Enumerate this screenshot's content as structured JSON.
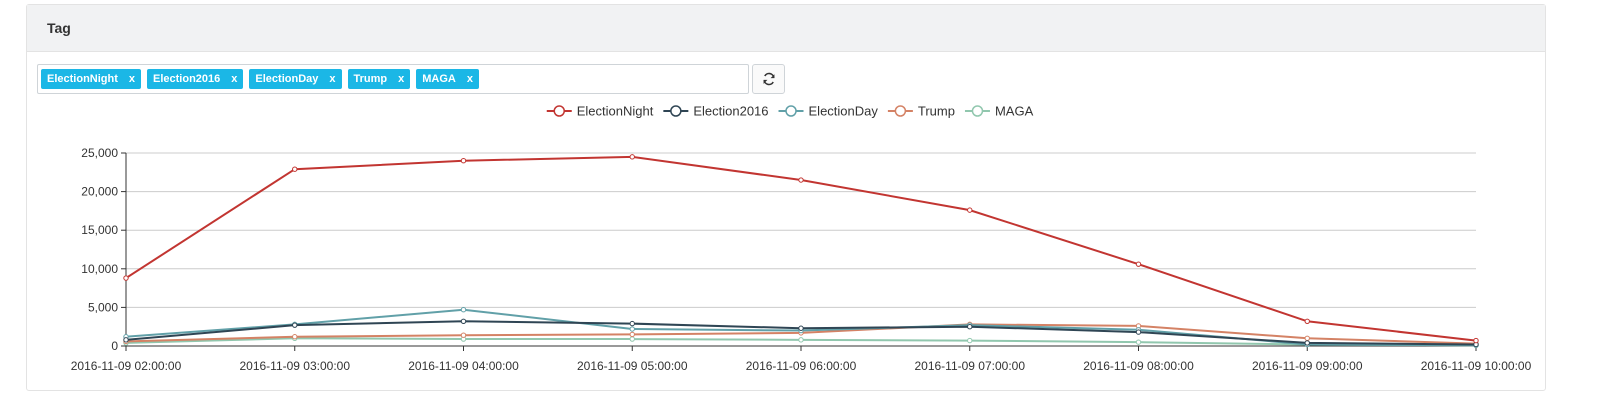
{
  "panel": {
    "title": "Tag"
  },
  "tags": [
    {
      "label": "ElectionNight",
      "remove": "x"
    },
    {
      "label": "Election2016",
      "remove": "x"
    },
    {
      "label": "ElectionDay",
      "remove": "x"
    },
    {
      "label": "Trump",
      "remove": "x"
    },
    {
      "label": "MAGA",
      "remove": "x"
    }
  ],
  "refresh_icon": "refresh-icon",
  "chart_data": {
    "type": "line",
    "title": "",
    "xlabel": "",
    "ylabel": "",
    "legend_position": "top-center",
    "grid": true,
    "ylim": [
      0,
      25000
    ],
    "yticks": [
      "0",
      "5,000",
      "10,000",
      "15,000",
      "20,000",
      "25,000"
    ],
    "x": [
      "2016-11-09 02:00:00",
      "2016-11-09 03:00:00",
      "2016-11-09 04:00:00",
      "2016-11-09 05:00:00",
      "2016-11-09 06:00:00",
      "2016-11-09 07:00:00",
      "2016-11-09 08:00:00",
      "2016-11-09 09:00:00",
      "2016-11-09 10:00:00"
    ],
    "series": [
      {
        "name": "ElectionNight",
        "color": "#c23531",
        "values": [
          8800,
          22900,
          24000,
          24500,
          21500,
          17600,
          10600,
          3200,
          700
        ]
      },
      {
        "name": "Election2016",
        "color": "#2f4554",
        "values": [
          800,
          2700,
          3200,
          2900,
          2300,
          2500,
          1800,
          400,
          200
        ]
      },
      {
        "name": "ElectionDay",
        "color": "#61a0a8",
        "values": [
          1200,
          2800,
          4700,
          2200,
          2000,
          2700,
          2100,
          200,
          100
        ]
      },
      {
        "name": "Trump",
        "color": "#d48265",
        "values": [
          600,
          1200,
          1400,
          1500,
          1700,
          2800,
          2600,
          1000,
          300
        ]
      },
      {
        "name": "MAGA",
        "color": "#91c7ae",
        "values": [
          400,
          1000,
          900,
          900,
          800,
          700,
          500,
          200,
          100
        ]
      }
    ]
  }
}
